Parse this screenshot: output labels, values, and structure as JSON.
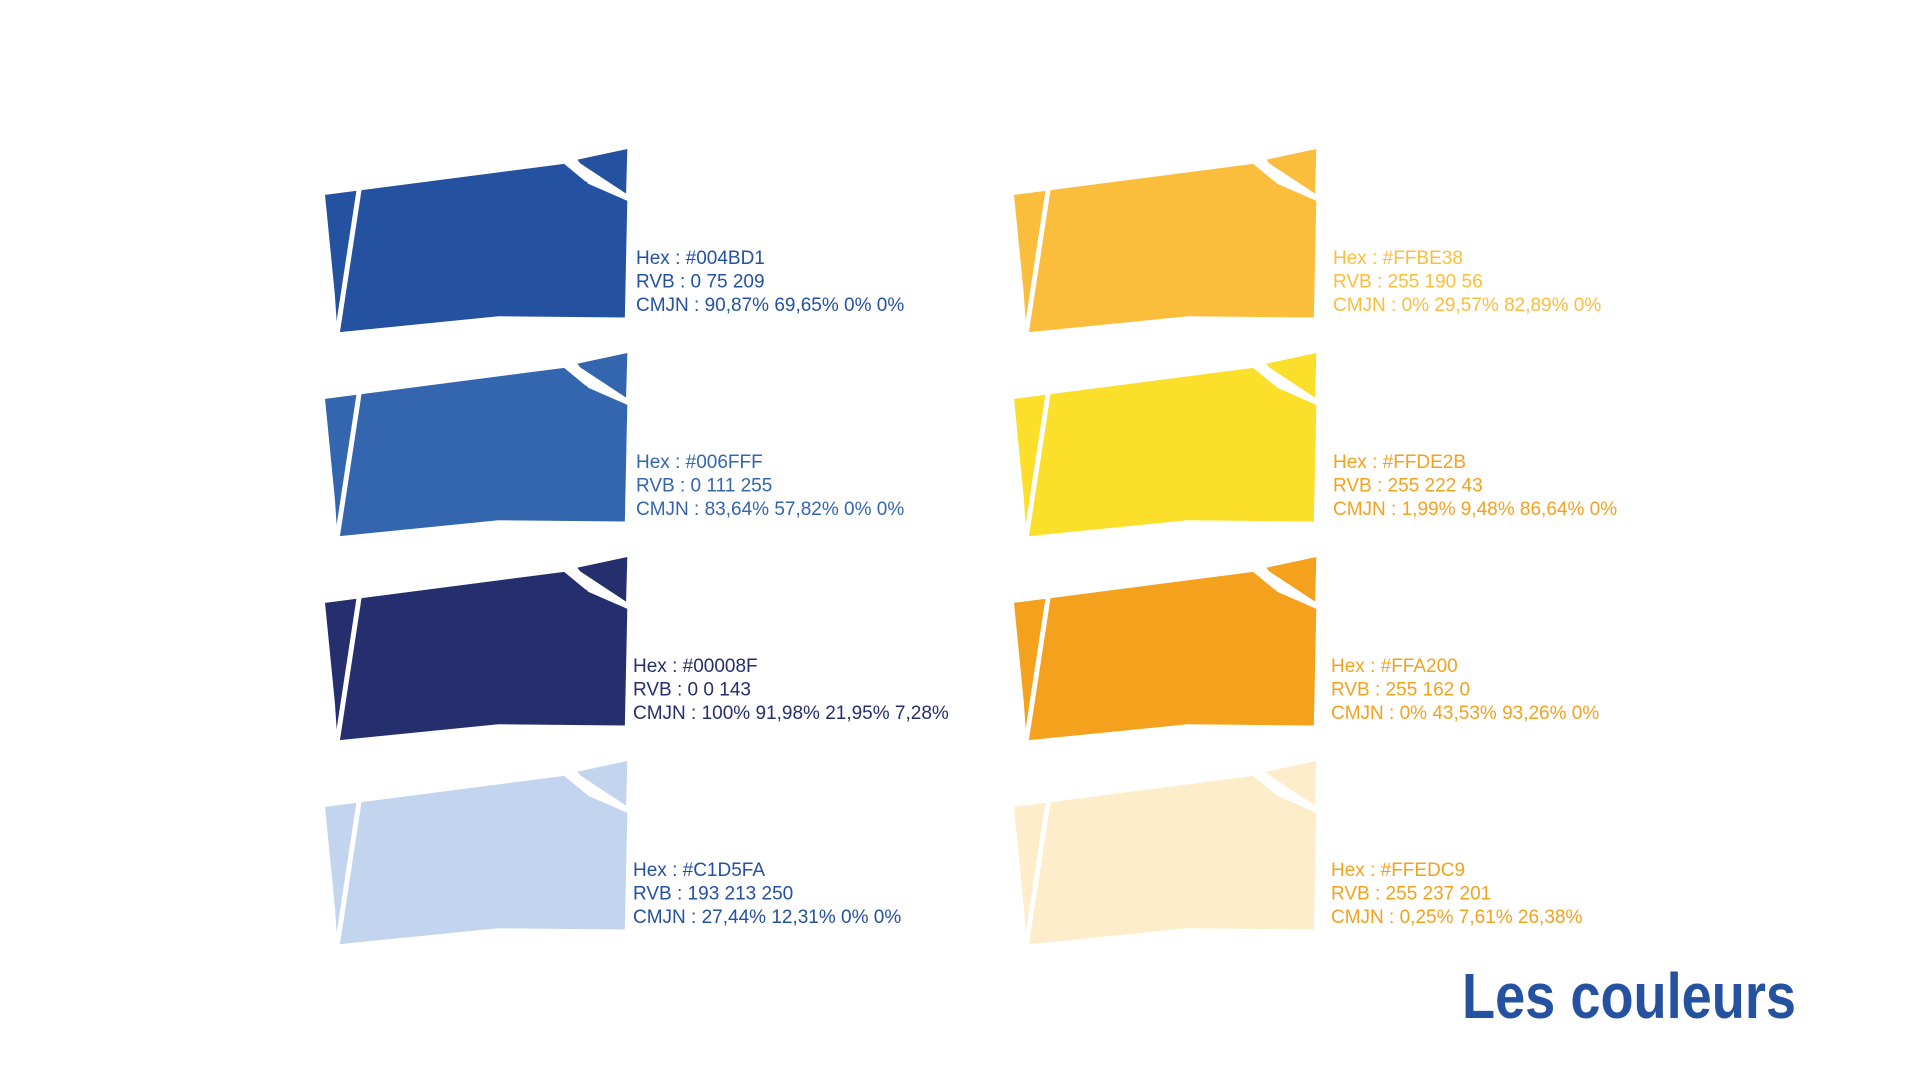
{
  "title": "Les couleurs",
  "title_color": "#2451a0",
  "columns": [
    {
      "swatches": [
        {
          "color": "#2451a0",
          "text_color": "#2451a0",
          "hex": "Hex : #004BD1",
          "rvb": "RVB : 0 75 209",
          "cmjn": "CMJN : 90,87% 69,65% 0% 0%"
        },
        {
          "color": "#3366af",
          "text_color": "#3366af",
          "hex": "Hex : #006FFF",
          "rvb": "RVB : 0 111 255",
          "cmjn": "CMJN : 83,64% 57,82% 0% 0%"
        },
        {
          "color": "#262f6e",
          "text_color": "#262f6e",
          "hex": "Hex : #00008F",
          "rvb": "RVB : 0 0 143",
          "cmjn": "CMJN : 100% 91,98% 21,95% 7,28%"
        },
        {
          "color": "#c3d4ef",
          "text_color": "#2451a0",
          "hex": "Hex : #C1D5FA",
          "rvb": "RVB : 193 213 250",
          "cmjn": "CMJN : 27,44% 12,31% 0% 0%"
        }
      ]
    },
    {
      "swatches": [
        {
          "color": "#fbbd3c",
          "text_color": "#fbbd3c",
          "hex": "Hex : #FFBE38",
          "rvb": "RVB : 255 190 56",
          "cmjn": "CMJN : 0% 29,57% 82,89% 0%"
        },
        {
          "color": "#fbdf2a",
          "text_color": "#f4a11e",
          "hex": "Hex : #FFDE2B",
          "rvb": "RVB : 255 222 43",
          "cmjn": "CMJN : 1,99% 9,48% 86,64% 0%"
        },
        {
          "color": "#f4a11e",
          "text_color": "#f4a11e",
          "hex": "Hex : #FFA200",
          "rvb": "RVB : 255 162 0",
          "cmjn": "CMJN : 0% 43,53% 93,26% 0%"
        },
        {
          "color": "#fdedcb",
          "text_color": "#f4a11e",
          "hex": "Hex : #FFEDC9",
          "rvb": "RVB : 255 237 201",
          "cmjn": "CMJN : 0,25% 7,61% 26,38%"
        }
      ]
    }
  ]
}
